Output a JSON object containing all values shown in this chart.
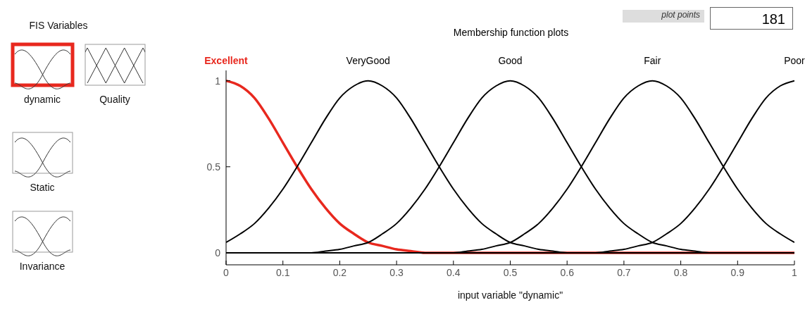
{
  "chart_data": {
    "type": "line",
    "title": "Membership function plots",
    "xlabel": "input variable \"dynamic\"",
    "x": [
      0,
      0.025,
      0.05,
      0.075,
      0.1,
      0.125,
      0.15,
      0.175,
      0.2,
      0.225,
      0.25,
      0.275,
      0.3,
      0.325,
      0.35,
      0.375,
      0.4,
      0.425,
      0.45,
      0.475,
      0.5,
      0.525,
      0.55,
      0.575,
      0.6,
      0.625,
      0.65,
      0.675,
      0.7,
      0.725,
      0.75,
      0.775,
      0.8,
      0.825,
      0.85,
      0.875,
      0.9,
      0.925,
      0.95,
      0.975,
      1
    ],
    "series": [
      {
        "name": "Excellent",
        "color": "#e8281e",
        "values": [
          1,
          0.97,
          0.9,
          0.78,
          0.64,
          0.5,
          0.37,
          0.26,
          0.17,
          0.11,
          0.06,
          0.04,
          0.02,
          0.01,
          0,
          0,
          0,
          0,
          0,
          0,
          0,
          0,
          0,
          0,
          0,
          0,
          0,
          0,
          0,
          0,
          0,
          0,
          0,
          0,
          0,
          0,
          0,
          0,
          0,
          0,
          0
        ]
      },
      {
        "name": "VeryGood",
        "color": "#000000",
        "values": [
          0.06,
          0.11,
          0.17,
          0.26,
          0.37,
          0.5,
          0.64,
          0.78,
          0.9,
          0.97,
          1,
          0.97,
          0.9,
          0.78,
          0.64,
          0.5,
          0.37,
          0.26,
          0.17,
          0.11,
          0.06,
          0.04,
          0.02,
          0.01,
          0,
          0,
          0,
          0,
          0,
          0,
          0,
          0,
          0,
          0,
          0,
          0,
          0,
          0,
          0,
          0,
          0
        ]
      },
      {
        "name": "Good",
        "color": "#000000",
        "values": [
          0,
          0,
          0,
          0,
          0,
          0,
          0,
          0.01,
          0.02,
          0.04,
          0.06,
          0.11,
          0.17,
          0.26,
          0.37,
          0.5,
          0.64,
          0.78,
          0.9,
          0.97,
          1,
          0.97,
          0.9,
          0.78,
          0.64,
          0.5,
          0.37,
          0.26,
          0.17,
          0.11,
          0.06,
          0.04,
          0.02,
          0.01,
          0,
          0,
          0,
          0,
          0,
          0,
          0
        ]
      },
      {
        "name": "Fair",
        "color": "#000000",
        "values": [
          0,
          0,
          0,
          0,
          0,
          0,
          0,
          0,
          0,
          0,
          0,
          0,
          0,
          0,
          0,
          0,
          0,
          0.01,
          0.02,
          0.04,
          0.06,
          0.11,
          0.17,
          0.26,
          0.37,
          0.5,
          0.64,
          0.78,
          0.9,
          0.97,
          1,
          0.97,
          0.9,
          0.78,
          0.64,
          0.5,
          0.37,
          0.26,
          0.17,
          0.11,
          0.06
        ]
      },
      {
        "name": "Poor",
        "color": "#000000",
        "values": [
          0,
          0,
          0,
          0,
          0,
          0,
          0,
          0,
          0,
          0,
          0,
          0,
          0,
          0,
          0,
          0,
          0,
          0,
          0,
          0,
          0,
          0,
          0,
          0,
          0,
          0,
          0,
          0.01,
          0.02,
          0.04,
          0.06,
          0.11,
          0.17,
          0.26,
          0.37,
          0.5,
          0.64,
          0.78,
          0.9,
          0.97,
          1
        ]
      }
    ],
    "xlim": [
      0,
      1
    ],
    "xticks": [
      0,
      0.1,
      0.2,
      0.3,
      0.4,
      0.5,
      0.6,
      0.7,
      0.8,
      0.9,
      1
    ],
    "ylim": [
      -0.07,
      1.06
    ],
    "yticks": [
      0,
      0.5,
      1
    ],
    "grid": false,
    "legend": false,
    "marker": "none",
    "line_style": "solid",
    "annotations": [
      "FIS Variables",
      "dynamic",
      "Quality",
      "Static",
      "Invariance",
      "plot points",
      "181"
    ]
  }
}
